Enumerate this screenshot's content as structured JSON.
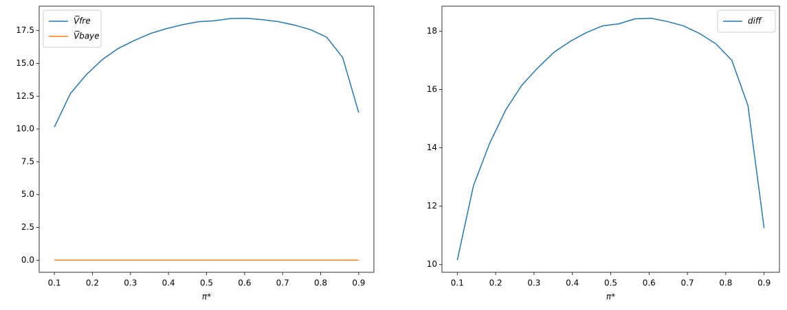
{
  "chart_data": [
    {
      "type": "line",
      "xlabel": "π*",
      "x": [
        0.1,
        0.1421,
        0.1842,
        0.2263,
        0.2684,
        0.3105,
        0.3526,
        0.3947,
        0.4368,
        0.4789,
        0.5211,
        0.5632,
        0.6053,
        0.6474,
        0.6895,
        0.7316,
        0.7737,
        0.8158,
        0.8579,
        0.9
      ],
      "series": [
        {
          "name": "V̅fre",
          "color": "#1f77b4",
          "values": [
            10.15,
            12.7,
            14.15,
            15.3,
            16.15,
            16.75,
            17.28,
            17.65,
            17.95,
            18.18,
            18.25,
            18.42,
            18.44,
            18.33,
            18.18,
            17.92,
            17.57,
            17.0,
            15.45,
            11.25
          ]
        },
        {
          "name": "V̅baye",
          "color": "#ff7f0e",
          "values": [
            0,
            0,
            0,
            0,
            0,
            0,
            0,
            0,
            0,
            0,
            0,
            0,
            0,
            0,
            0,
            0,
            0,
            0,
            0,
            0
          ]
        }
      ],
      "xlim": [
        0.06,
        0.94
      ],
      "xticks": [
        0.1,
        0.2,
        0.3,
        0.4,
        0.5,
        0.6,
        0.7,
        0.8,
        0.9
      ],
      "ylim": [
        -0.922,
        19.362
      ],
      "yticks": [
        {
          "value": 0,
          "label": "0.0"
        },
        2.5,
        {
          "value": 5,
          "label": "5.0"
        },
        7.5,
        {
          "value": 10,
          "label": "10.0"
        },
        12.5,
        {
          "value": 15,
          "label": "15.0"
        },
        17.5
      ],
      "legend": "upper left"
    },
    {
      "type": "line",
      "xlabel": "π*",
      "x": [
        0.1,
        0.1421,
        0.1842,
        0.2263,
        0.2684,
        0.3105,
        0.3526,
        0.3947,
        0.4368,
        0.4789,
        0.5211,
        0.5632,
        0.6053,
        0.6474,
        0.6895,
        0.7316,
        0.7737,
        0.8158,
        0.8579,
        0.9
      ],
      "series": [
        {
          "name": "diff",
          "color": "#1f77b4",
          "values": [
            10.15,
            12.7,
            14.15,
            15.3,
            16.15,
            16.75,
            17.28,
            17.65,
            17.95,
            18.18,
            18.25,
            18.42,
            18.44,
            18.33,
            18.18,
            17.92,
            17.57,
            17.0,
            15.45,
            11.25
          ]
        }
      ],
      "xlim": [
        0.06,
        0.94
      ],
      "xticks": [
        0.1,
        0.2,
        0.3,
        0.4,
        0.5,
        0.6,
        0.7,
        0.8,
        0.9
      ],
      "ylim": [
        9.7355,
        18.8545
      ],
      "yticks": [
        10,
        12,
        14,
        16,
        18
      ],
      "legend": "upper right"
    }
  ]
}
